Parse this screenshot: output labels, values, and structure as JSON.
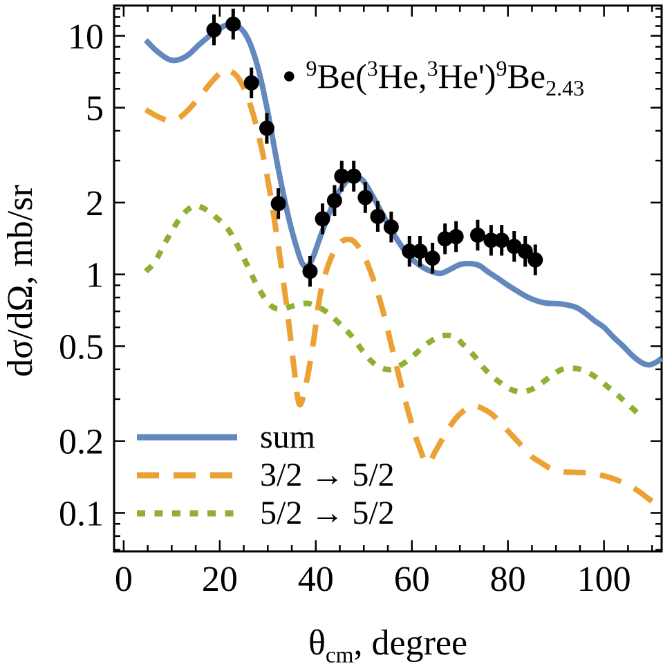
{
  "chart_data": {
    "type": "line",
    "title": "",
    "ylabel": "dσ/dΩ, mb/sr",
    "xlabel_parts": [
      {
        "t": "θ"
      },
      {
        "t": "cm",
        "s": "sub"
      },
      {
        "t": ", degree"
      }
    ],
    "xlim": [
      -2,
      112
    ],
    "ylim": [
      0.069,
      13.4
    ],
    "yscale": "log",
    "grid": false,
    "legend_position": "lower-left-inside",
    "xticks": {
      "major": [
        {
          "v": 0,
          "label": "0"
        },
        {
          "v": 20,
          "label": "20"
        },
        {
          "v": 40,
          "label": "40"
        },
        {
          "v": 60,
          "label": "60"
        },
        {
          "v": 80,
          "label": "80"
        },
        {
          "v": 100,
          "label": "100"
        }
      ],
      "minor": [
        5,
        10,
        15,
        25,
        30,
        35,
        45,
        50,
        55,
        65,
        70,
        75,
        85,
        90,
        95,
        105,
        110
      ]
    },
    "yticks": {
      "major": [
        {
          "v": 10,
          "label": "10"
        },
        {
          "v": 5,
          "label": "5"
        },
        {
          "v": 2,
          "label": "2"
        },
        {
          "v": 1,
          "label": "1"
        },
        {
          "v": 0.5,
          "label": "0.5"
        },
        {
          "v": 0.2,
          "label": "0.2"
        },
        {
          "v": 0.1,
          "label": "0.1"
        }
      ],
      "minor": [
        13,
        12,
        11,
        9,
        8,
        7,
        6,
        4,
        3,
        0.9,
        0.8,
        0.7,
        0.6,
        0.4,
        0.3,
        0.09,
        0.08,
        0.07
      ]
    },
    "series": [
      {
        "name": "sum",
        "color": "#6288bd",
        "style": "solid",
        "x": [
          4.6,
          7,
          10,
          13,
          16,
          19,
          21.5,
          24,
          26,
          28,
          30,
          32,
          34,
          36,
          37.5,
          39,
          41,
          43,
          45,
          47,
          48.5,
          50,
          52,
          54,
          56,
          58,
          60,
          62,
          64,
          66,
          68,
          70,
          72,
          74,
          76,
          78,
          80,
          82,
          84,
          86,
          88,
          91,
          94,
          96,
          98,
          100,
          102,
          104,
          106,
          108,
          109.5,
          111,
          112
        ],
        "y": [
          9.6,
          8.6,
          7.9,
          8.2,
          9.3,
          10.4,
          11.1,
          10.9,
          9.6,
          7.3,
          4.8,
          2.9,
          1.85,
          1.3,
          1.09,
          1.13,
          1.45,
          1.85,
          2.25,
          2.52,
          2.57,
          2.45,
          2.1,
          1.77,
          1.5,
          1.3,
          1.16,
          1.08,
          1.03,
          1.01,
          1.05,
          1.1,
          1.11,
          1.09,
          1.02,
          0.96,
          0.9,
          0.85,
          0.805,
          0.775,
          0.758,
          0.752,
          0.73,
          0.69,
          0.64,
          0.6,
          0.545,
          0.5,
          0.455,
          0.425,
          0.418,
          0.43,
          0.445
        ]
      },
      {
        "name": "3/2 → 5/2",
        "color": "#eba134",
        "style": "dashed",
        "x": [
          4.6,
          7,
          9.5,
          12,
          15,
          18,
          20.5,
          22,
          24,
          26,
          28,
          30,
          32,
          34,
          35.5,
          36.6,
          38,
          39.5,
          41,
          43,
          45,
          46.5,
          48,
          50,
          52,
          54,
          56,
          58,
          60,
          61.5,
          63.2,
          65,
          67,
          69,
          71,
          73,
          75,
          77,
          79,
          81,
          83,
          85,
          87,
          89,
          91,
          94,
          97,
          100,
          102,
          104,
          106,
          108,
          110,
          111.5
        ],
        "y": [
          4.9,
          4.6,
          4.42,
          4.6,
          5.3,
          6.3,
          7.1,
          7.15,
          6.6,
          5.4,
          3.9,
          2.5,
          1.4,
          0.72,
          0.4,
          0.285,
          0.35,
          0.52,
          0.84,
          1.15,
          1.35,
          1.4,
          1.37,
          1.2,
          0.95,
          0.7,
          0.48,
          0.33,
          0.235,
          0.19,
          0.161,
          0.183,
          0.215,
          0.247,
          0.27,
          0.281,
          0.272,
          0.256,
          0.232,
          0.21,
          0.19,
          0.172,
          0.162,
          0.153,
          0.149,
          0.148,
          0.147,
          0.143,
          0.139,
          0.134,
          0.128,
          0.12,
          0.112,
          0.108
        ]
      },
      {
        "name": "5/2 → 5/2",
        "color": "#8fb032",
        "style": "dotted",
        "x": [
          4.6,
          6.5,
          9,
          12,
          14.5,
          16.5,
          19,
          22,
          25,
          28,
          30.5,
          32.5,
          34.5,
          36.5,
          38.5,
          40.5,
          42.5,
          45,
          47.5,
          50,
          52,
          54,
          56,
          58,
          60,
          62.5,
          65,
          67,
          69,
          71,
          73,
          75,
          77,
          79,
          81,
          83,
          85,
          87,
          89,
          91,
          93,
          95,
          97,
          99,
          101,
          103,
          105,
          107,
          108.2
        ],
        "y": [
          1.03,
          1.13,
          1.4,
          1.75,
          1.93,
          1.9,
          1.75,
          1.52,
          1.17,
          0.88,
          0.745,
          0.715,
          0.73,
          0.75,
          0.755,
          0.73,
          0.69,
          0.62,
          0.55,
          0.47,
          0.425,
          0.403,
          0.4,
          0.42,
          0.45,
          0.5,
          0.54,
          0.555,
          0.545,
          0.5,
          0.455,
          0.405,
          0.37,
          0.345,
          0.327,
          0.322,
          0.33,
          0.35,
          0.375,
          0.398,
          0.405,
          0.4,
          0.385,
          0.362,
          0.335,
          0.31,
          0.285,
          0.262,
          0.248
        ]
      }
    ],
    "points": {
      "marker_glyph": "●",
      "color": "#000000",
      "label_parts": [
        {
          "t": "9",
          "s": "sup"
        },
        {
          "t": "Be("
        },
        {
          "t": "3",
          "s": "sup"
        },
        {
          "t": "He,"
        },
        {
          "t": "3",
          "s": "sup"
        },
        {
          "t": "He')"
        },
        {
          "t": "9",
          "s": "sup"
        },
        {
          "t": "Be"
        },
        {
          "t": "2.43",
          "s": "sub"
        }
      ],
      "x": [
        18.8,
        22.8,
        26.6,
        29.8,
        32.2,
        38.8,
        41.4,
        43.9,
        45.4,
        47.9,
        50.3,
        52.9,
        55.7,
        59.5,
        61.7,
        64.3,
        66.9,
        69.2,
        73.7,
        76.5,
        78.7,
        81.3,
        83.6,
        85.7
      ],
      "y": [
        10.6,
        11.2,
        6.35,
        4.1,
        1.98,
        1.03,
        1.71,
        2.04,
        2.58,
        2.58,
        2.1,
        1.75,
        1.58,
        1.25,
        1.25,
        1.17,
        1.41,
        1.44,
        1.46,
        1.39,
        1.39,
        1.31,
        1.25,
        1.15
      ],
      "err_factor": 1.16
    }
  }
}
